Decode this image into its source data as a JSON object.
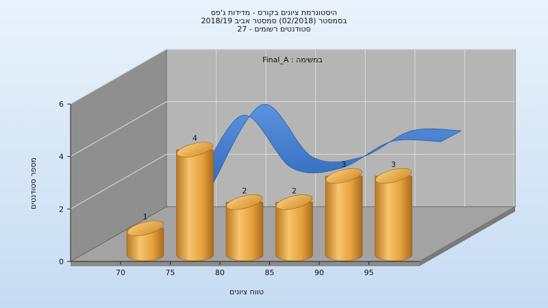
{
  "titles": [
    "היסטוגרמת ציונים בקורס - מדידות ג'פס",
    "בסמסטר (02/2018) סמסטר אביב 2018/19",
    "סטודנטים רשומים - 27"
  ],
  "chart_data": {
    "type": "bar",
    "subtitle": "Final_A : במשימה",
    "xlabel": "טווח ציונים",
    "ylabel": "מספר סטודנטים",
    "x_ticks": [
      "70",
      "75",
      "80",
      "85",
      "90",
      "95"
    ],
    "y_ticks": [
      "0",
      "2",
      "4",
      "6"
    ],
    "ylim": [
      0,
      6
    ],
    "series": [
      {
        "categories": [
          "70",
          "75",
          "80",
          "85",
          "90",
          "95"
        ],
        "values": [
          1,
          4,
          2,
          2,
          3,
          3
        ],
        "color": "#e6a13e",
        "shape": "cylinder"
      },
      {
        "categories": [
          "70",
          "75",
          "80",
          "85",
          "90",
          "95"
        ],
        "values": [
          1,
          4,
          2,
          2,
          3,
          3
        ],
        "color": "#3a78cc",
        "shape": "smooth-ribbon"
      }
    ],
    "data_labels": [
      "1",
      "4",
      "2",
      "2",
      "3",
      "3"
    ],
    "grid": true
  },
  "colors": {
    "back_wall": "#b5b5b5",
    "side_wall": "#8f8f8f",
    "floor": "#a3a3a3",
    "bar": "#e6a13e",
    "ribbon": "#3a78cc"
  }
}
